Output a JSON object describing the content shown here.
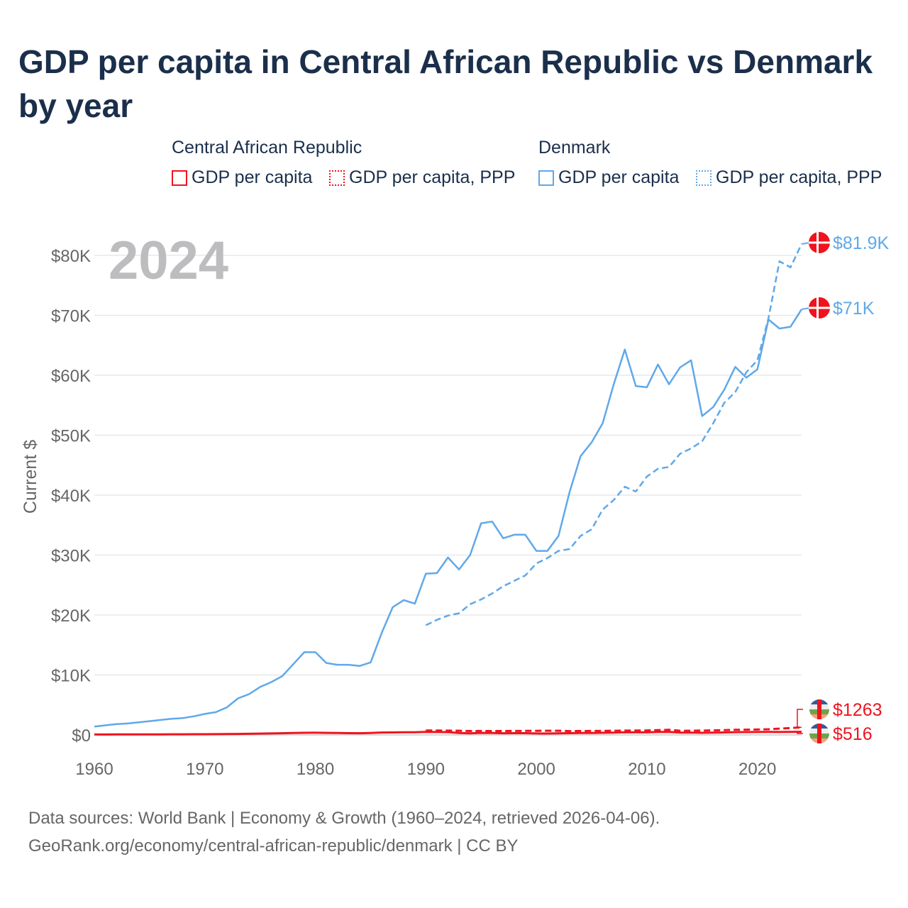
{
  "title": "GDP per capita in Central African Republic vs Denmark by year",
  "legend": {
    "group1": "Central African Republic",
    "group2": "Denmark",
    "items": [
      {
        "label": "GDP per capita",
        "color": "#f0131e",
        "style": "solid"
      },
      {
        "label": "GDP per capita, PPP",
        "color": "#f0131e",
        "style": "dotted"
      },
      {
        "label": "GDP per capita",
        "color": "#5fa8ea",
        "style": "solid"
      },
      {
        "label": "GDP per capita, PPP",
        "color": "#5fa8ea",
        "style": "dotted"
      }
    ]
  },
  "year_label": "2024",
  "footer": {
    "line1": "Data sources: World Bank | Economy & Growth (1960–2024, retrieved 2026-04-06).",
    "line2": "GeoRank.org/economy/central-african-republic/denmark | CC BY"
  },
  "chart_data": {
    "type": "line",
    "title": "GDP per capita in Central African Republic vs Denmark by year",
    "xlabel": "",
    "ylabel": "Current $",
    "xlim": [
      1960,
      2024
    ],
    "ylim": [
      0,
      80000
    ],
    "xticks": [
      "1960",
      "1970",
      "1980",
      "1990",
      "2000",
      "2010",
      "2020"
    ],
    "yticks": [
      {
        "v": 0,
        "label": "$0"
      },
      {
        "v": 10000,
        "label": "$10K"
      },
      {
        "v": 20000,
        "label": "$20K"
      },
      {
        "v": 30000,
        "label": "$30K"
      },
      {
        "v": 40000,
        "label": "$40K"
      },
      {
        "v": 50000,
        "label": "$50K"
      },
      {
        "v": 60000,
        "label": "$60K"
      },
      {
        "v": 70000,
        "label": "$70K"
      },
      {
        "v": 80000,
        "label": "$80K"
      }
    ],
    "series": [
      {
        "name": "Denmark GDP per capita",
        "color": "#5fa8ea",
        "dash": false,
        "start": 1960,
        "end_label": "$71K",
        "values": [
          1400,
          1600,
          1800,
          1900,
          2100,
          2300,
          2500,
          2700,
          2800,
          3100,
          3500,
          3800,
          4600,
          6100,
          6800,
          8000,
          8800,
          9800,
          11800,
          13800,
          13800,
          12000,
          11700,
          11700,
          11500,
          12100,
          17000,
          21300,
          22500,
          21900,
          26900,
          27000,
          29600,
          27600,
          30000,
          35300,
          35600,
          32800,
          33400,
          33400,
          30700,
          30700,
          33200,
          40500,
          46500,
          48800,
          52000,
          58500,
          64300,
          58200,
          58000,
          61800,
          58500,
          61300,
          62500,
          53200,
          54700,
          57600,
          61400,
          59600,
          61000,
          69300,
          67800,
          68100,
          71000
        ]
      },
      {
        "name": "Denmark GDP per capita, PPP",
        "color": "#5fa8ea",
        "dash": true,
        "start": 1990,
        "end_label": "$81.9K",
        "values": [
          18300,
          19200,
          19900,
          20300,
          21800,
          22600,
          23600,
          24800,
          25700,
          26600,
          28600,
          29500,
          30700,
          31000,
          33200,
          34300,
          37600,
          39200,
          41400,
          40600,
          43100,
          44400,
          44700,
          46900,
          47800,
          49000,
          52000,
          55400,
          57200,
          60500,
          62500,
          69500,
          79000,
          78000,
          81900
        ]
      },
      {
        "name": "Central African Republic GDP per capita",
        "color": "#f0131e",
        "dash": false,
        "start": 1960,
        "end_label": "$516",
        "values": [
          70,
          75,
          80,
          85,
          90,
          95,
          100,
          105,
          110,
          115,
          120,
          130,
          140,
          160,
          190,
          220,
          250,
          280,
          330,
          360,
          370,
          340,
          320,
          300,
          280,
          330,
          400,
          420,
          450,
          440,
          500,
          480,
          460,
          330,
          260,
          340,
          320,
          280,
          290,
          290,
          250,
          240,
          260,
          300,
          320,
          330,
          350,
          390,
          450,
          430,
          430,
          490,
          500,
          380,
          380,
          350,
          380,
          420,
          460,
          470,
          480,
          500,
          490,
          500,
          516
        ]
      },
      {
        "name": "Central African Republic GDP per capita, PPP",
        "color": "#f0131e",
        "dash": true,
        "start": 1990,
        "end_label": "$1263",
        "values": [
          750,
          730,
          720,
          700,
          650,
          660,
          650,
          650,
          660,
          680,
          690,
          700,
          700,
          640,
          650,
          660,
          680,
          700,
          720,
          730,
          750,
          800,
          850,
          700,
          700,
          720,
          760,
          800,
          850,
          880,
          900,
          950,
          1050,
          1150,
          1263
        ]
      }
    ]
  }
}
